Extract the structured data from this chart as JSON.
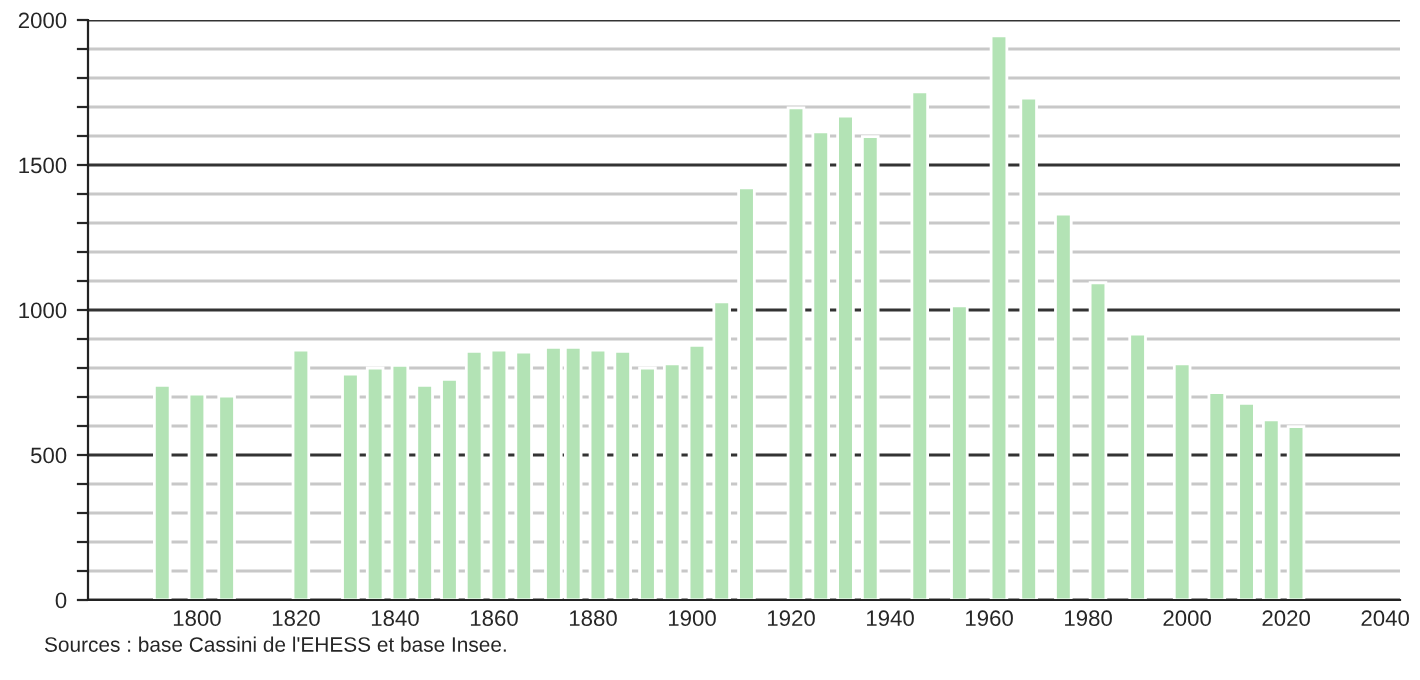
{
  "chart_data": {
    "type": "bar",
    "x": [
      1793,
      1800,
      1806,
      1821,
      1831,
      1836,
      1841,
      1846,
      1851,
      1856,
      1861,
      1866,
      1872,
      1876,
      1881,
      1886,
      1891,
      1896,
      1901,
      1906,
      1911,
      1921,
      1926,
      1931,
      1936,
      1946,
      1954,
      1962,
      1968,
      1975,
      1982,
      1990,
      1999,
      2006,
      2012,
      2017,
      2022
    ],
    "values": [
      740,
      710,
      703,
      862,
      779,
      800,
      809,
      740,
      761,
      857,
      862,
      855,
      871,
      871,
      862,
      857,
      800,
      814,
      878,
      1028,
      1421,
      1697,
      1614,
      1669,
      1598,
      1752,
      1014,
      1945,
      1731,
      1331,
      1094,
      917,
      814,
      715,
      678,
      621,
      598
    ],
    "color": "#b3e3b5",
    "xlim": [
      1778,
      2043
    ],
    "xticks": [
      1800,
      1820,
      1840,
      1860,
      1880,
      1900,
      1920,
      1940,
      1960,
      1980,
      2000,
      2020,
      2040
    ],
    "ylim": [
      0,
      2000
    ],
    "yticks": [
      0,
      {
        "value": 100,
        "label": null
      },
      {
        "value": 200,
        "label": null
      },
      {
        "value": 300,
        "label": null
      },
      {
        "value": 400,
        "label": null
      },
      500,
      {
        "value": 600,
        "label": null
      },
      {
        "value": 700,
        "label": null
      },
      {
        "value": 800,
        "label": null
      },
      {
        "value": 900,
        "label": null
      },
      1000,
      {
        "value": 1100,
        "label": null
      },
      {
        "value": 1200,
        "label": null
      },
      {
        "value": 1300,
        "label": null
      },
      {
        "value": 1400,
        "label": null
      },
      1500,
      {
        "value": 1600,
        "label": null
      },
      {
        "value": 1700,
        "label": null
      },
      {
        "value": 1800,
        "label": null
      },
      {
        "value": 1900,
        "label": null
      },
      2000
    ],
    "grid": "y",
    "annotations": [
      "Sources : base Cassini de l'EHESS et base Insee."
    ]
  }
}
